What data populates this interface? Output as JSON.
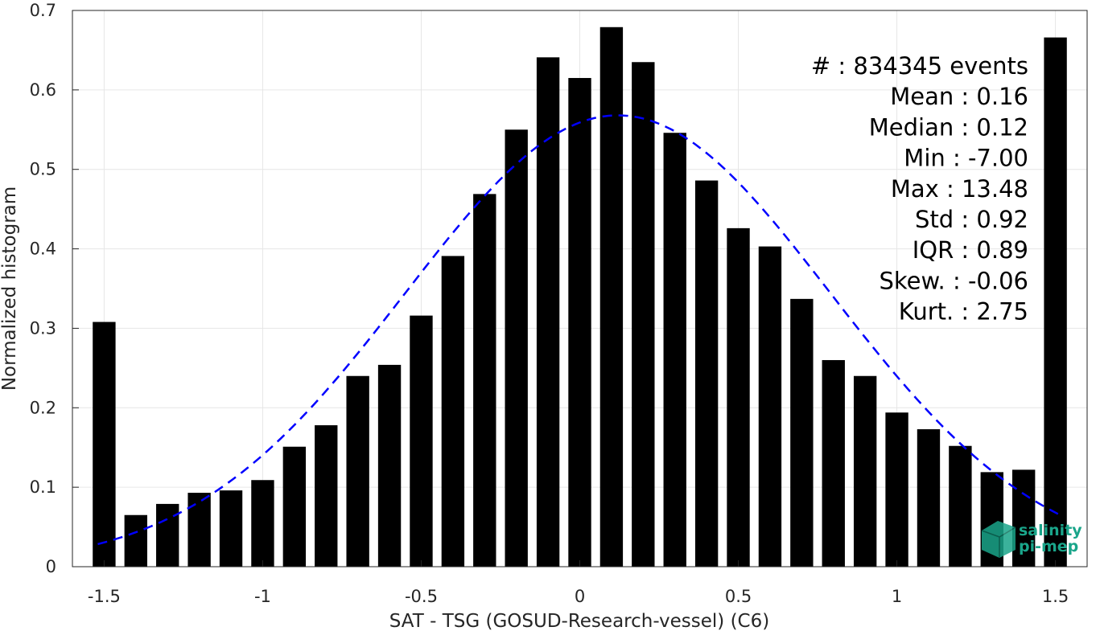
{
  "chart_data": {
    "type": "bar",
    "xlabel": "SAT - TSG (GOSUD-Research-vessel) (C6)",
    "ylabel": "Normalized histogram",
    "xlim": [
      -1.6,
      1.6
    ],
    "ylim": [
      0,
      0.7
    ],
    "x_ticks": [
      "-1.5",
      "-1",
      "-0.5",
      "0",
      "0.5",
      "1",
      "1.5"
    ],
    "x_tick_values": [
      -1.5,
      -1,
      -0.5,
      0,
      0.5,
      1,
      1.5
    ],
    "y_ticks": [
      "0",
      "0.1",
      "0.2",
      "0.3",
      "0.4",
      "0.5",
      "0.6",
      "0.7"
    ],
    "y_tick_values": [
      0,
      0.1,
      0.2,
      0.3,
      0.4,
      0.5,
      0.6,
      0.7
    ],
    "grid": true,
    "bar_color": "#000000",
    "x": [
      -1.5,
      -1.4,
      -1.3,
      -1.2,
      -1.1,
      -1.0,
      -0.9,
      -0.8,
      -0.7,
      -0.6,
      -0.5,
      -0.4,
      -0.3,
      -0.2,
      -0.1,
      0.0,
      0.1,
      0.2,
      0.3,
      0.4,
      0.5,
      0.6,
      0.7,
      0.8,
      0.9,
      1.0,
      1.1,
      1.2,
      1.3,
      1.4,
      1.5
    ],
    "values": [
      0.308,
      0.065,
      0.079,
      0.093,
      0.096,
      0.109,
      0.151,
      0.178,
      0.24,
      0.254,
      0.316,
      0.391,
      0.469,
      0.55,
      0.641,
      0.615,
      0.679,
      0.635,
      0.546,
      0.486,
      0.426,
      0.403,
      0.337,
      0.26,
      0.24,
      0.194,
      0.173,
      0.152,
      0.119,
      0.122,
      0.666
    ],
    "fit": {
      "type": "line",
      "style": "dashed",
      "color": "#0000ff",
      "mean": 0.12,
      "peak": 0.568,
      "sigma": 0.67,
      "x_range": [
        -1.52,
        1.52
      ]
    },
    "annotations": [
      {
        "label": "#  ",
        "value": ": 834345 events"
      },
      {
        "label": "Mean ",
        "value": ": 0.16"
      },
      {
        "label": "Median ",
        "value": ": 0.12"
      },
      {
        "label": "Min ",
        "value": ": -7.00"
      },
      {
        "label": "Max ",
        "value": ": 13.48"
      },
      {
        "label": "Std ",
        "value": ": 0.92"
      },
      {
        "label": "IQR ",
        "value": ": 0.89"
      },
      {
        "label": "Skew. ",
        "value": ": -0.06"
      },
      {
        "label": "Kurt. ",
        "value": ": 2.75"
      }
    ]
  },
  "logo": {
    "line1": "salinity",
    "line2": "pi-mep",
    "color": "#1aa58a"
  }
}
